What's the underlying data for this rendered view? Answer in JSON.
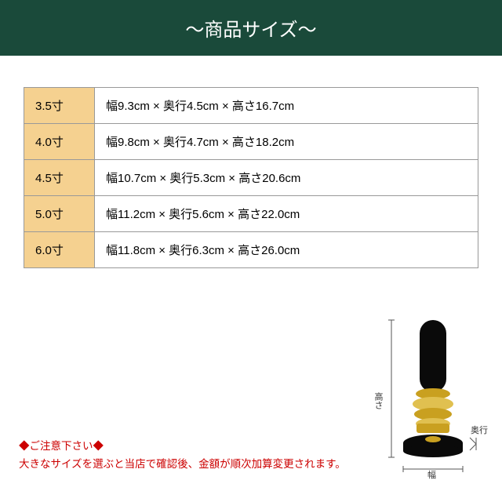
{
  "header": {
    "title": "～商品サイズ～"
  },
  "table": {
    "col_bg": "#f5d190",
    "border_color": "#999999",
    "rows": [
      {
        "size": "3.5寸",
        "dims": "幅9.3cm × 奥行4.5cm × 高さ16.7cm"
      },
      {
        "size": "4.0寸",
        "dims": "幅9.8cm × 奥行4.7cm × 高さ18.2cm"
      },
      {
        "size": "4.5寸",
        "dims": "幅10.7cm × 奥行5.3cm × 高さ20.6cm"
      },
      {
        "size": "5.0寸",
        "dims": "幅11.2cm × 奥行5.6cm × 高さ22.0cm"
      },
      {
        "size": "6.0寸",
        "dims": "幅11.8cm × 奥行6.3cm × 高さ26.0cm"
      }
    ]
  },
  "notice": {
    "line1": "◆ご注意下さい◆",
    "line2": "大きなサイズを選ぶと当店で確認後、金額が順次加算変更されます。"
  },
  "diagram": {
    "labels": {
      "height": "高さ",
      "width": "幅",
      "depth": "奥行"
    },
    "colors": {
      "black": "#0a0a0a",
      "gold": "#c9a020",
      "gold_light": "#e0c050",
      "line": "#555555"
    }
  }
}
